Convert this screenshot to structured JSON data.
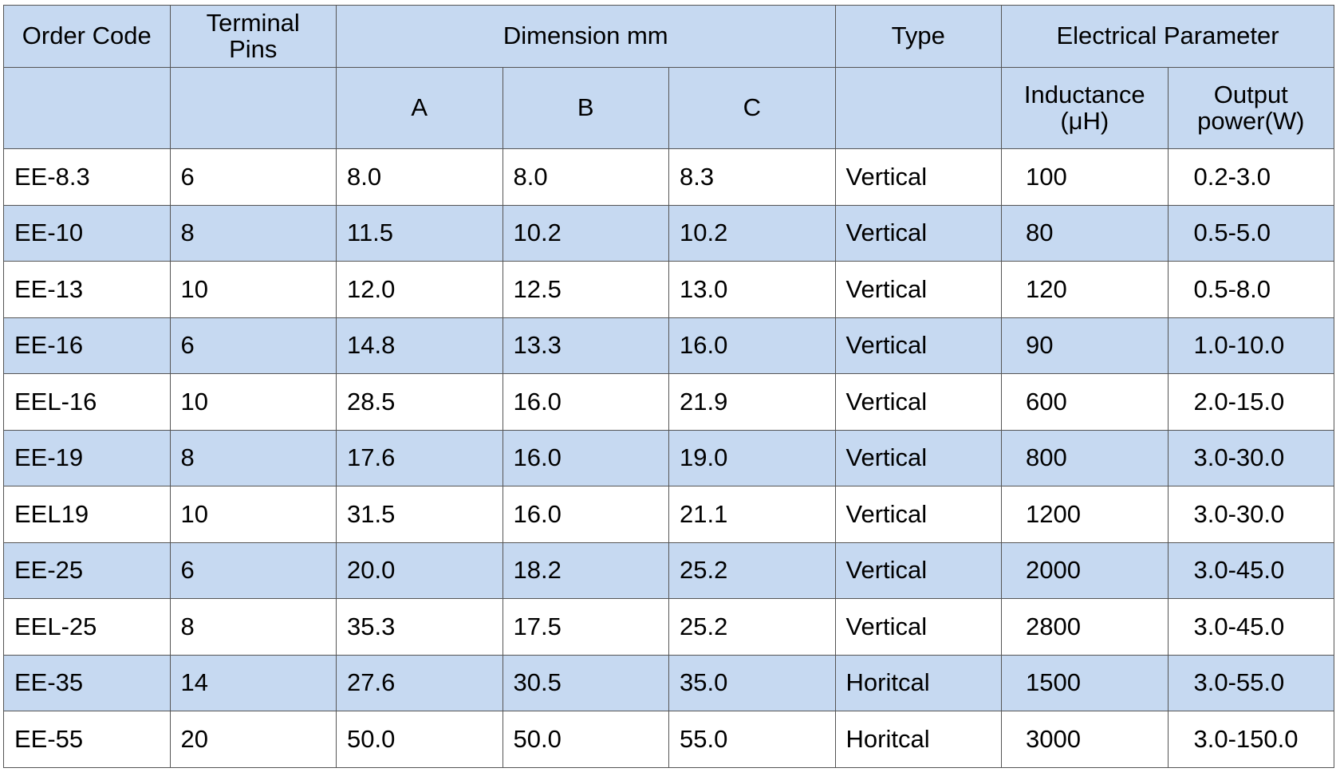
{
  "table": {
    "header": {
      "order_code": "Order Code",
      "terminal_pins": "Terminal Pins",
      "dimension": "Dimension mm",
      "type": "Type",
      "electrical": "Electrical Parameter",
      "dimension_sub": [
        "A",
        "B",
        "C"
      ],
      "electrical_sub": [
        "Inductance (μH)",
        "Output power(W)"
      ]
    },
    "rows": [
      [
        "EE-8.3",
        "6",
        "8.0",
        "8.0",
        "8.3",
        "Vertical",
        "100",
        "0.2-3.0"
      ],
      [
        "EE-10",
        "8",
        "11.5",
        "10.2",
        "10.2",
        "Vertical",
        "80",
        "0.5-5.0"
      ],
      [
        "EE-13",
        "10",
        "12.0",
        "12.5",
        "13.0",
        "Vertical",
        "120",
        "0.5-8.0"
      ],
      [
        "EE-16",
        "6",
        "14.8",
        "13.3",
        "16.0",
        "Vertical",
        "90",
        "1.0-10.0"
      ],
      [
        "EEL-16",
        "10",
        "28.5",
        "16.0",
        "21.9",
        "Vertical",
        "600",
        "2.0-15.0"
      ],
      [
        "EE-19",
        "8",
        "17.6",
        "16.0",
        "19.0",
        "Vertical",
        "800",
        "3.0-30.0"
      ],
      [
        "EEL19",
        "10",
        "31.5",
        "16.0",
        "21.1",
        "Vertical",
        "1200",
        "3.0-30.0"
      ],
      [
        "EE-25",
        "6",
        "20.0",
        "18.2",
        "25.2",
        "Vertical",
        "2000",
        "3.0-45.0"
      ],
      [
        "EEL-25",
        "8",
        "35.3",
        "17.5",
        "25.2",
        "Vertical",
        "2800",
        "3.0-45.0"
      ],
      [
        "EE-35",
        "14",
        "27.6",
        "30.5",
        "35.0",
        "Horitcal",
        "1500",
        "3.0-55.0"
      ],
      [
        "EE-55",
        "20",
        "50.0",
        "50.0",
        "55.0",
        "Horitcal",
        "3000",
        "3.0-150.0"
      ]
    ]
  }
}
